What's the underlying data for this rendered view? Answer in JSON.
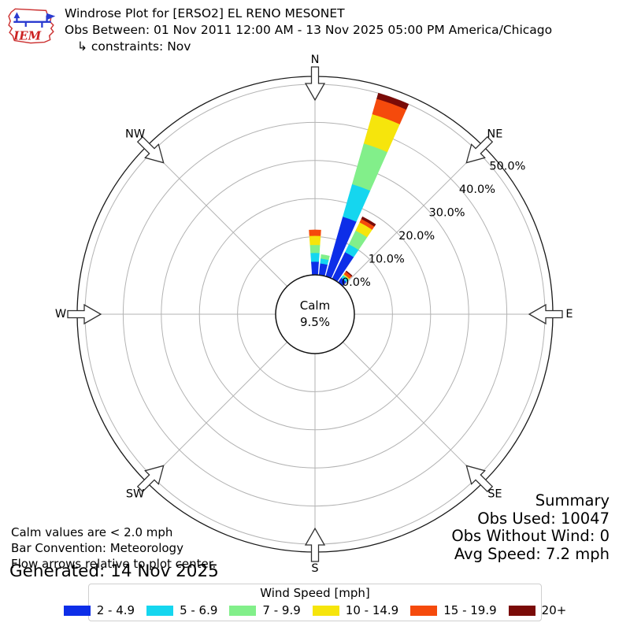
{
  "header": {
    "logo_text": "IEM",
    "title": "Windrose Plot for [ERSO2] EL RENO MESONET",
    "subtitle": "Obs Between: 01 Nov 2011 12:00 AM - 13 Nov 2025 05:00 PM America/Chicago",
    "constraints": "↳ constraints: Nov"
  },
  "chart_data": {
    "type": "windrose",
    "title": "Windrose Plot for [ERSO2] EL RENO MESONET",
    "units": "mph",
    "bar_convention": "Meteorology",
    "calm": {
      "label": "Calm",
      "percent": "9.5%"
    },
    "compass_labels": [
      "N",
      "NE",
      "E",
      "SE",
      "S",
      "SW",
      "W",
      "NW"
    ],
    "ring_ticks_percent": [
      0,
      10,
      20,
      30,
      40,
      50
    ],
    "ring_tick_labels": [
      "0.0%",
      "10.0%",
      "20.0%",
      "30.0%",
      "40.0%",
      "50.0%"
    ],
    "radial_max_percent": 52,
    "speed_bins": [
      {
        "label": "2 - 4.9",
        "color": "#0d2ee8"
      },
      {
        "label": "5 - 6.9",
        "color": "#15d6ef"
      },
      {
        "label": "7 - 9.9",
        "color": "#82ef8a"
      },
      {
        "label": "10 - 14.9",
        "color": "#f6e50c"
      },
      {
        "label": "15 - 19.9",
        "color": "#f54a0c"
      },
      {
        "label": "20+",
        "color": "#7a0b08"
      }
    ],
    "bars": [
      {
        "direction_deg": 0,
        "segments_percent": [
          3.5,
          2.3,
          2.1,
          2.4,
          1.5,
          0
        ]
      },
      {
        "direction_deg": 10,
        "segments_percent": [
          3.1,
          1.3,
          1.0,
          0,
          0,
          0
        ]
      },
      {
        "direction_deg": 20,
        "segments_percent": [
          16.3,
          8.9,
          11.1,
          8.0,
          4.2,
          1.5
        ]
      },
      {
        "direction_deg": 30,
        "segments_percent": [
          7.8,
          2.3,
          4.0,
          2.4,
          1.0,
          0.6
        ]
      },
      {
        "direction_deg": 40,
        "segments_percent": [
          1.5,
          0.7,
          0.3,
          0.2,
          0.8,
          0.2
        ]
      }
    ]
  },
  "legend": {
    "title": "Wind Speed [mph]"
  },
  "notes": {
    "line1": "Calm values are < 2.0 mph",
    "line2": "Bar Convention: Meteorology",
    "line3": "Flow arrows relative to plot center.",
    "generated": "Generated: 14 Nov 2025"
  },
  "summary": {
    "title": "Summary",
    "obs_used": "Obs Used: 10047",
    "obs_without_wind": "Obs Without Wind: 0",
    "avg_speed": "Avg Speed: 7.2 mph"
  }
}
